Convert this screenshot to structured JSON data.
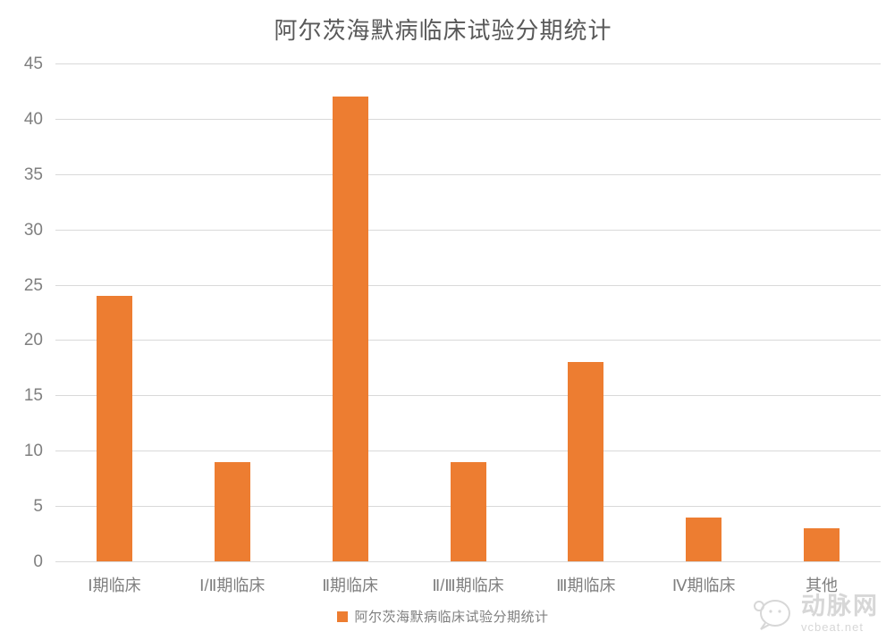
{
  "chart_data": {
    "type": "bar",
    "title": "阿尔茨海默病临床试验分期统计",
    "categories": [
      "Ⅰ期临床",
      "Ⅰ/Ⅱ期临床",
      "Ⅱ期临床",
      "Ⅱ/Ⅲ期临床",
      "Ⅲ期临床",
      "Ⅳ期临床",
      "其他"
    ],
    "values": [
      24,
      9,
      42,
      9,
      18,
      4,
      3
    ],
    "series_name": "阿尔茨海默病临床试验分期统计",
    "xlabel": "",
    "ylabel": "",
    "ylim": [
      0,
      45
    ],
    "yticks": [
      0,
      5,
      10,
      15,
      20,
      25,
      30,
      35,
      40,
      45
    ],
    "grid": "horizontal",
    "legend_position": "bottom",
    "bar_color": "#ED7D31"
  },
  "legend": {
    "label": "阿尔茨海默病临床试验分期统计",
    "swatch_color": "#ED7D31"
  },
  "watermark": {
    "name": "动脉网",
    "url": "vcbeat.net"
  },
  "colors": {
    "bar": "#ED7D31",
    "title_text": "#595959",
    "axis_text": "#7F7F7F",
    "gridline": "#D9D9D9",
    "watermark": "#D7D7D7",
    "background": "#FFFFFF"
  }
}
